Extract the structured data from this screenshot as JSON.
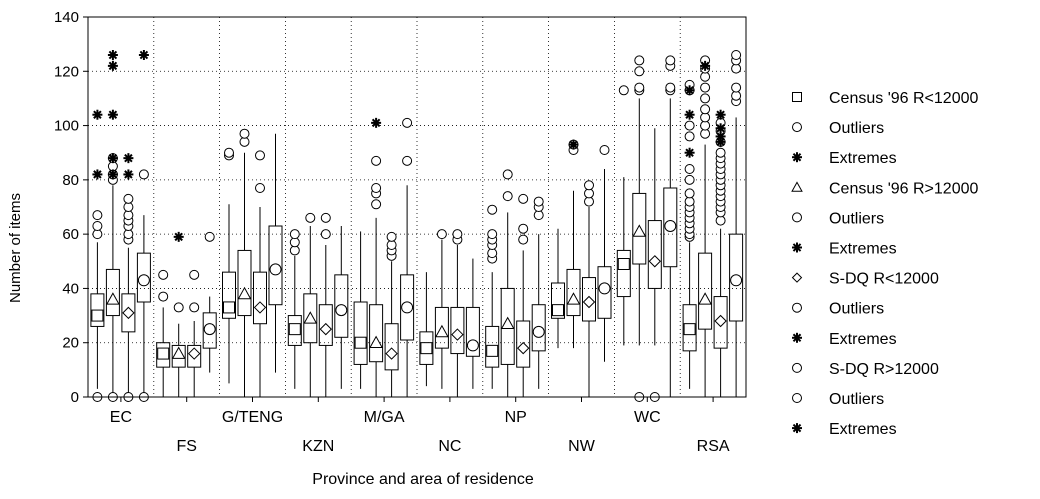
{
  "chart_data": {
    "type": "box",
    "title": "",
    "xlabel": "Province and area of residence",
    "ylabel": "Number of items",
    "ylim": [
      0,
      140
    ],
    "yticks": [
      0,
      20,
      40,
      60,
      80,
      100,
      120,
      140
    ],
    "grid": true,
    "legend_position": "right",
    "categories": [
      "EC",
      "FS",
      "G/TENG",
      "KZN",
      "M/GA",
      "NC",
      "NP",
      "NW",
      "WC",
      "RSA"
    ],
    "legend": [
      {
        "label": "Census '96 R<12000",
        "marker": "square"
      },
      {
        "label": "Outliers",
        "marker": "circle"
      },
      {
        "label": "Extremes",
        "marker": "asterisk"
      },
      {
        "label": "Census '96 R>12000",
        "marker": "triangle"
      },
      {
        "label": "Outliers",
        "marker": "circle"
      },
      {
        "label": "Extremes",
        "marker": "asterisk"
      },
      {
        "label": "S-DQ R<12000",
        "marker": "diamond"
      },
      {
        "label": "Outliers",
        "marker": "circle"
      },
      {
        "label": "Extremes",
        "marker": "asterisk"
      },
      {
        "label": "S-DQ R>12000",
        "marker": "circle"
      },
      {
        "label": "Outliers",
        "marker": "circle"
      },
      {
        "label": "Extremes",
        "marker": "asterisk"
      }
    ],
    "series": [
      {
        "name": "Census '96 R<12000",
        "marker": "square",
        "boxes": [
          {
            "category": "EC",
            "median": 30,
            "q1": 26,
            "q3": 38,
            "whisker_low": 3,
            "whisker_high": 57,
            "outliers": [
              60,
              63,
              67,
              0
            ],
            "extremes": [
              82,
              104
            ]
          },
          {
            "category": "FS",
            "median": 16,
            "q1": 11,
            "q3": 20,
            "whisker_low": 0,
            "whisker_high": 33,
            "outliers": [
              37,
              45
            ],
            "extremes": []
          },
          {
            "category": "G/TENG",
            "median": 33,
            "q1": 29,
            "q3": 46,
            "whisker_low": 5,
            "whisker_high": 71,
            "outliers": [
              89,
              90
            ],
            "extremes": []
          },
          {
            "category": "KZN",
            "median": 25,
            "q1": 19,
            "q3": 30,
            "whisker_low": 3,
            "whisker_high": 52,
            "outliers": [
              54,
              57,
              60
            ],
            "extremes": []
          },
          {
            "category": "M/GA",
            "median": 20,
            "q1": 12,
            "q3": 35,
            "whisker_low": 3,
            "whisker_high": 61,
            "outliers": [],
            "extremes": []
          },
          {
            "category": "NC",
            "median": 18,
            "q1": 12,
            "q3": 24,
            "whisker_low": 4,
            "whisker_high": 46,
            "outliers": [],
            "extremes": []
          },
          {
            "category": "NP",
            "median": 17,
            "q1": 11,
            "q3": 26,
            "whisker_low": 3,
            "whisker_high": 46,
            "outliers": [
              51,
              53,
              56,
              58,
              60,
              69
            ],
            "extremes": []
          },
          {
            "category": "NW",
            "median": 32,
            "q1": 29,
            "q3": 42,
            "whisker_low": 18,
            "whisker_high": 62,
            "outliers": [],
            "extremes": []
          },
          {
            "category": "WC",
            "median": 49,
            "q1": 37,
            "q3": 54,
            "whisker_low": 19,
            "whisker_high": 81,
            "outliers": [
              113
            ],
            "extremes": []
          },
          {
            "category": "RSA",
            "median": 25,
            "q1": 17,
            "q3": 34,
            "whisker_low": 3,
            "whisker_high": 57,
            "outliers": [
              59,
              60,
              62,
              64,
              66,
              68,
              70,
              72,
              75,
              80,
              84,
              96,
              100,
              113,
              115
            ],
            "extremes": [
              90,
              104,
              113
            ]
          }
        ]
      },
      {
        "name": "Census '96 R>12000",
        "marker": "triangle",
        "boxes": [
          {
            "category": "EC",
            "median": 36,
            "q1": 30,
            "q3": 47,
            "whisker_low": 0,
            "whisker_high": 78,
            "outliers": [
              80,
              82,
              85,
              88,
              0
            ],
            "extremes": [
              82,
              88,
              104,
              122,
              126
            ]
          },
          {
            "category": "FS",
            "median": 16,
            "q1": 11,
            "q3": 19,
            "whisker_low": 0,
            "whisker_high": 27,
            "outliers": [
              33
            ],
            "extremes": [
              59
            ]
          },
          {
            "category": "G/TENG",
            "median": 38,
            "q1": 30,
            "q3": 54,
            "whisker_low": 0,
            "whisker_high": 90,
            "outliers": [
              94,
              97
            ],
            "extremes": []
          },
          {
            "category": "KZN",
            "median": 29,
            "q1": 20,
            "q3": 38,
            "whisker_low": 0,
            "whisker_high": 63,
            "outliers": [
              66
            ],
            "extremes": []
          },
          {
            "category": "M/GA",
            "median": 20,
            "q1": 13,
            "q3": 34,
            "whisker_low": 0,
            "whisker_high": 66,
            "outliers": [
              71,
              75,
              77,
              87
            ],
            "extremes": [
              101
            ]
          },
          {
            "category": "NC",
            "median": 24,
            "q1": 18,
            "q3": 33,
            "whisker_low": 3,
            "whisker_high": 58,
            "outliers": [
              60
            ],
            "extremes": []
          },
          {
            "category": "NP",
            "median": 27,
            "q1": 12,
            "q3": 40,
            "whisker_low": 0,
            "whisker_high": 68,
            "outliers": [
              74,
              82
            ],
            "extremes": []
          },
          {
            "category": "NW",
            "median": 36,
            "q1": 30,
            "q3": 47,
            "whisker_low": 18,
            "whisker_high": 76,
            "outliers": [
              91,
              93
            ],
            "extremes": [
              93
            ]
          },
          {
            "category": "WC",
            "median": 61,
            "q1": 49,
            "q3": 75,
            "whisker_low": 19,
            "whisker_high": 110,
            "outliers": [
              0,
              113,
              114,
              120,
              124
            ],
            "extremes": []
          },
          {
            "category": "RSA",
            "median": 36,
            "q1": 25,
            "q3": 53,
            "whisker_low": 0,
            "whisker_high": 93,
            "outliers": [
              97,
              100,
              103,
              106,
              110,
              114,
              118,
              121,
              124
            ],
            "extremes": [
              122
            ]
          }
        ]
      },
      {
        "name": "S-DQ R<12000",
        "marker": "diamond",
        "boxes": [
          {
            "category": "EC",
            "median": 31,
            "q1": 24,
            "q3": 38,
            "whisker_low": 0,
            "whisker_high": 55,
            "outliers": [
              58,
              60,
              63,
              65,
              67,
              70,
              73,
              0
            ],
            "extremes": [
              82,
              88
            ]
          },
          {
            "category": "FS",
            "median": 16,
            "q1": 11,
            "q3": 19,
            "whisker_low": 0,
            "whisker_high": 28,
            "outliers": [
              33,
              45
            ],
            "extremes": []
          },
          {
            "category": "G/TENG",
            "median": 33,
            "q1": 27,
            "q3": 46,
            "whisker_low": 0,
            "whisker_high": 70,
            "outliers": [
              77,
              89
            ],
            "extremes": []
          },
          {
            "category": "KZN",
            "median": 25,
            "q1": 19,
            "q3": 34,
            "whisker_low": 0,
            "whisker_high": 56,
            "outliers": [
              60,
              66
            ],
            "extremes": []
          },
          {
            "category": "M/GA",
            "median": 16,
            "q1": 10,
            "q3": 27,
            "whisker_low": 0,
            "whisker_high": 50,
            "outliers": [
              52,
              54,
              56,
              59
            ],
            "extremes": []
          },
          {
            "category": "NC",
            "median": 23,
            "q1": 16,
            "q3": 33,
            "whisker_low": 0,
            "whisker_high": 56,
            "outliers": [
              58,
              60
            ],
            "extremes": []
          },
          {
            "category": "NP",
            "median": 18,
            "q1": 11,
            "q3": 28,
            "whisker_low": 0,
            "whisker_high": 54,
            "outliers": [
              58,
              62,
              73
            ],
            "extremes": []
          },
          {
            "category": "NW",
            "median": 35,
            "q1": 28,
            "q3": 44,
            "whisker_low": 0,
            "whisker_high": 70,
            "outliers": [
              72,
              75,
              78
            ],
            "extremes": []
          },
          {
            "category": "WC",
            "median": 50,
            "q1": 40,
            "q3": 65,
            "whisker_low": 19,
            "whisker_high": 99,
            "outliers": [
              0
            ],
            "extremes": []
          },
          {
            "category": "RSA",
            "median": 28,
            "q1": 18,
            "q3": 37,
            "whisker_low": 0,
            "whisker_high": 62,
            "outliers": [
              65,
              68,
              70,
              72,
              74,
              76,
              78,
              80,
              82,
              84,
              86,
              88,
              90,
              94,
              98,
              101
            ],
            "extremes": [
              94,
              96,
              99,
              104
            ]
          }
        ]
      },
      {
        "name": "S-DQ R>12000",
        "marker": "circle",
        "boxes": [
          {
            "category": "EC",
            "median": 43,
            "q1": 35,
            "q3": 53,
            "whisker_low": 0,
            "whisker_high": 67,
            "outliers": [
              82,
              0
            ],
            "extremes": [
              126
            ]
          },
          {
            "category": "FS",
            "median": 25,
            "q1": 18,
            "q3": 31,
            "whisker_low": 9,
            "whisker_high": 37,
            "outliers": [
              59
            ],
            "extremes": []
          },
          {
            "category": "G/TENG",
            "median": 47,
            "q1": 34,
            "q3": 63,
            "whisker_low": 9,
            "whisker_high": 97,
            "outliers": [],
            "extremes": []
          },
          {
            "category": "KZN",
            "median": 32,
            "q1": 22,
            "q3": 45,
            "whisker_low": 3,
            "whisker_high": 63,
            "outliers": [],
            "extremes": []
          },
          {
            "category": "M/GA",
            "median": 33,
            "q1": 21,
            "q3": 45,
            "whisker_low": 0,
            "whisker_high": 78,
            "outliers": [
              87,
              101
            ],
            "extremes": []
          },
          {
            "category": "NC",
            "median": 19,
            "q1": 15,
            "q3": 33,
            "whisker_low": 3,
            "whisker_high": 51,
            "outliers": [],
            "extremes": []
          },
          {
            "category": "NP",
            "median": 24,
            "q1": 17,
            "q3": 34,
            "whisker_low": 3,
            "whisker_high": 60,
            "outliers": [
              67,
              70,
              72
            ],
            "extremes": []
          },
          {
            "category": "NW",
            "median": 40,
            "q1": 29,
            "q3": 48,
            "whisker_low": 13,
            "whisker_high": 84,
            "outliers": [
              91
            ],
            "extremes": []
          },
          {
            "category": "WC",
            "median": 63,
            "q1": 48,
            "q3": 77,
            "whisker_low": 0,
            "whisker_high": 110,
            "outliers": [
              113,
              114,
              122,
              124
            ],
            "extremes": []
          },
          {
            "category": "RSA",
            "median": 43,
            "q1": 28,
            "q3": 60,
            "whisker_low": 0,
            "whisker_high": 103,
            "outliers": [
              109,
              111,
              114,
              121,
              124,
              126
            ],
            "extremes": []
          }
        ]
      }
    ]
  }
}
